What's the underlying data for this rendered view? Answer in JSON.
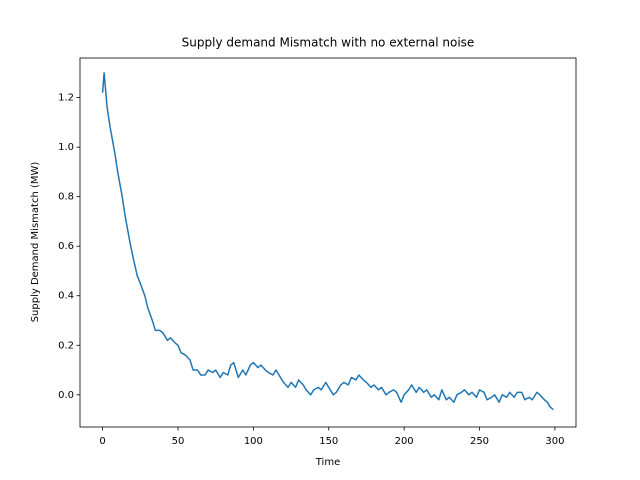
{
  "chart_data": {
    "type": "line",
    "title": "Supply demand Mismatch with no external noise",
    "x_label": "Time",
    "y_label": "Supply Demand Mismatch (MW)",
    "color": "#1f77b4",
    "x": [
      0,
      1,
      3,
      5,
      8,
      10,
      13,
      15,
      18,
      20,
      23,
      25,
      28,
      30,
      33,
      35,
      38,
      40,
      43,
      45,
      48,
      50,
      52,
      55,
      58,
      60,
      63,
      65,
      68,
      70,
      73,
      75,
      78,
      80,
      83,
      85,
      87,
      90,
      93,
      95,
      98,
      100,
      103,
      105,
      108,
      110,
      113,
      115,
      118,
      120,
      123,
      125,
      128,
      130,
      133,
      135,
      138,
      140,
      143,
      145,
      148,
      150,
      153,
      155,
      158,
      160,
      163,
      165,
      168,
      170,
      173,
      175,
      178,
      180,
      183,
      185,
      188,
      190,
      193,
      195,
      198,
      200,
      203,
      205,
      208,
      210,
      213,
      215,
      218,
      220,
      223,
      225,
      228,
      230,
      233,
      235,
      238,
      240,
      243,
      245,
      248,
      250,
      253,
      255,
      258,
      260,
      263,
      265,
      268,
      270,
      273,
      275,
      278,
      280,
      283,
      285,
      288,
      290,
      293,
      295,
      297,
      299
    ],
    "values": [
      1.22,
      1.3,
      1.16,
      1.08,
      0.98,
      0.9,
      0.8,
      0.72,
      0.62,
      0.56,
      0.48,
      0.45,
      0.4,
      0.35,
      0.3,
      0.26,
      0.26,
      0.25,
      0.22,
      0.23,
      0.21,
      0.2,
      0.17,
      0.16,
      0.14,
      0.1,
      0.1,
      0.08,
      0.08,
      0.1,
      0.09,
      0.1,
      0.07,
      0.09,
      0.08,
      0.12,
      0.13,
      0.07,
      0.1,
      0.08,
      0.12,
      0.13,
      0.11,
      0.12,
      0.1,
      0.09,
      0.08,
      0.1,
      0.07,
      0.05,
      0.03,
      0.05,
      0.03,
      0.06,
      0.04,
      0.02,
      0.0,
      0.02,
      0.03,
      0.02,
      0.05,
      0.03,
      0.0,
      0.01,
      0.04,
      0.05,
      0.04,
      0.07,
      0.06,
      0.08,
      0.06,
      0.05,
      0.03,
      0.04,
      0.02,
      0.03,
      0.0,
      0.01,
      0.02,
      0.01,
      -0.03,
      0.0,
      0.02,
      0.04,
      0.01,
      0.03,
      0.01,
      0.02,
      -0.01,
      0.0,
      -0.02,
      0.02,
      -0.02,
      -0.01,
      -0.03,
      0.0,
      0.01,
      0.02,
      0.0,
      0.01,
      -0.01,
      0.02,
      0.01,
      -0.02,
      -0.01,
      0.0,
      -0.03,
      0.0,
      -0.01,
      0.01,
      -0.01,
      0.01,
      0.01,
      -0.02,
      -0.01,
      -0.02,
      0.01,
      0.0,
      -0.02,
      -0.03,
      -0.05,
      -0.06
    ],
    "xlim": [
      -15,
      314
    ],
    "ylim": [
      -0.13,
      1.36
    ],
    "xticks": [
      0,
      50,
      100,
      150,
      200,
      250,
      300
    ],
    "yticks": [
      {
        "value": 0,
        "label": "0.0"
      },
      0.2,
      0.4,
      0.6,
      0.8,
      {
        "value": 1,
        "label": "1.0"
      },
      1.2
    ]
  }
}
